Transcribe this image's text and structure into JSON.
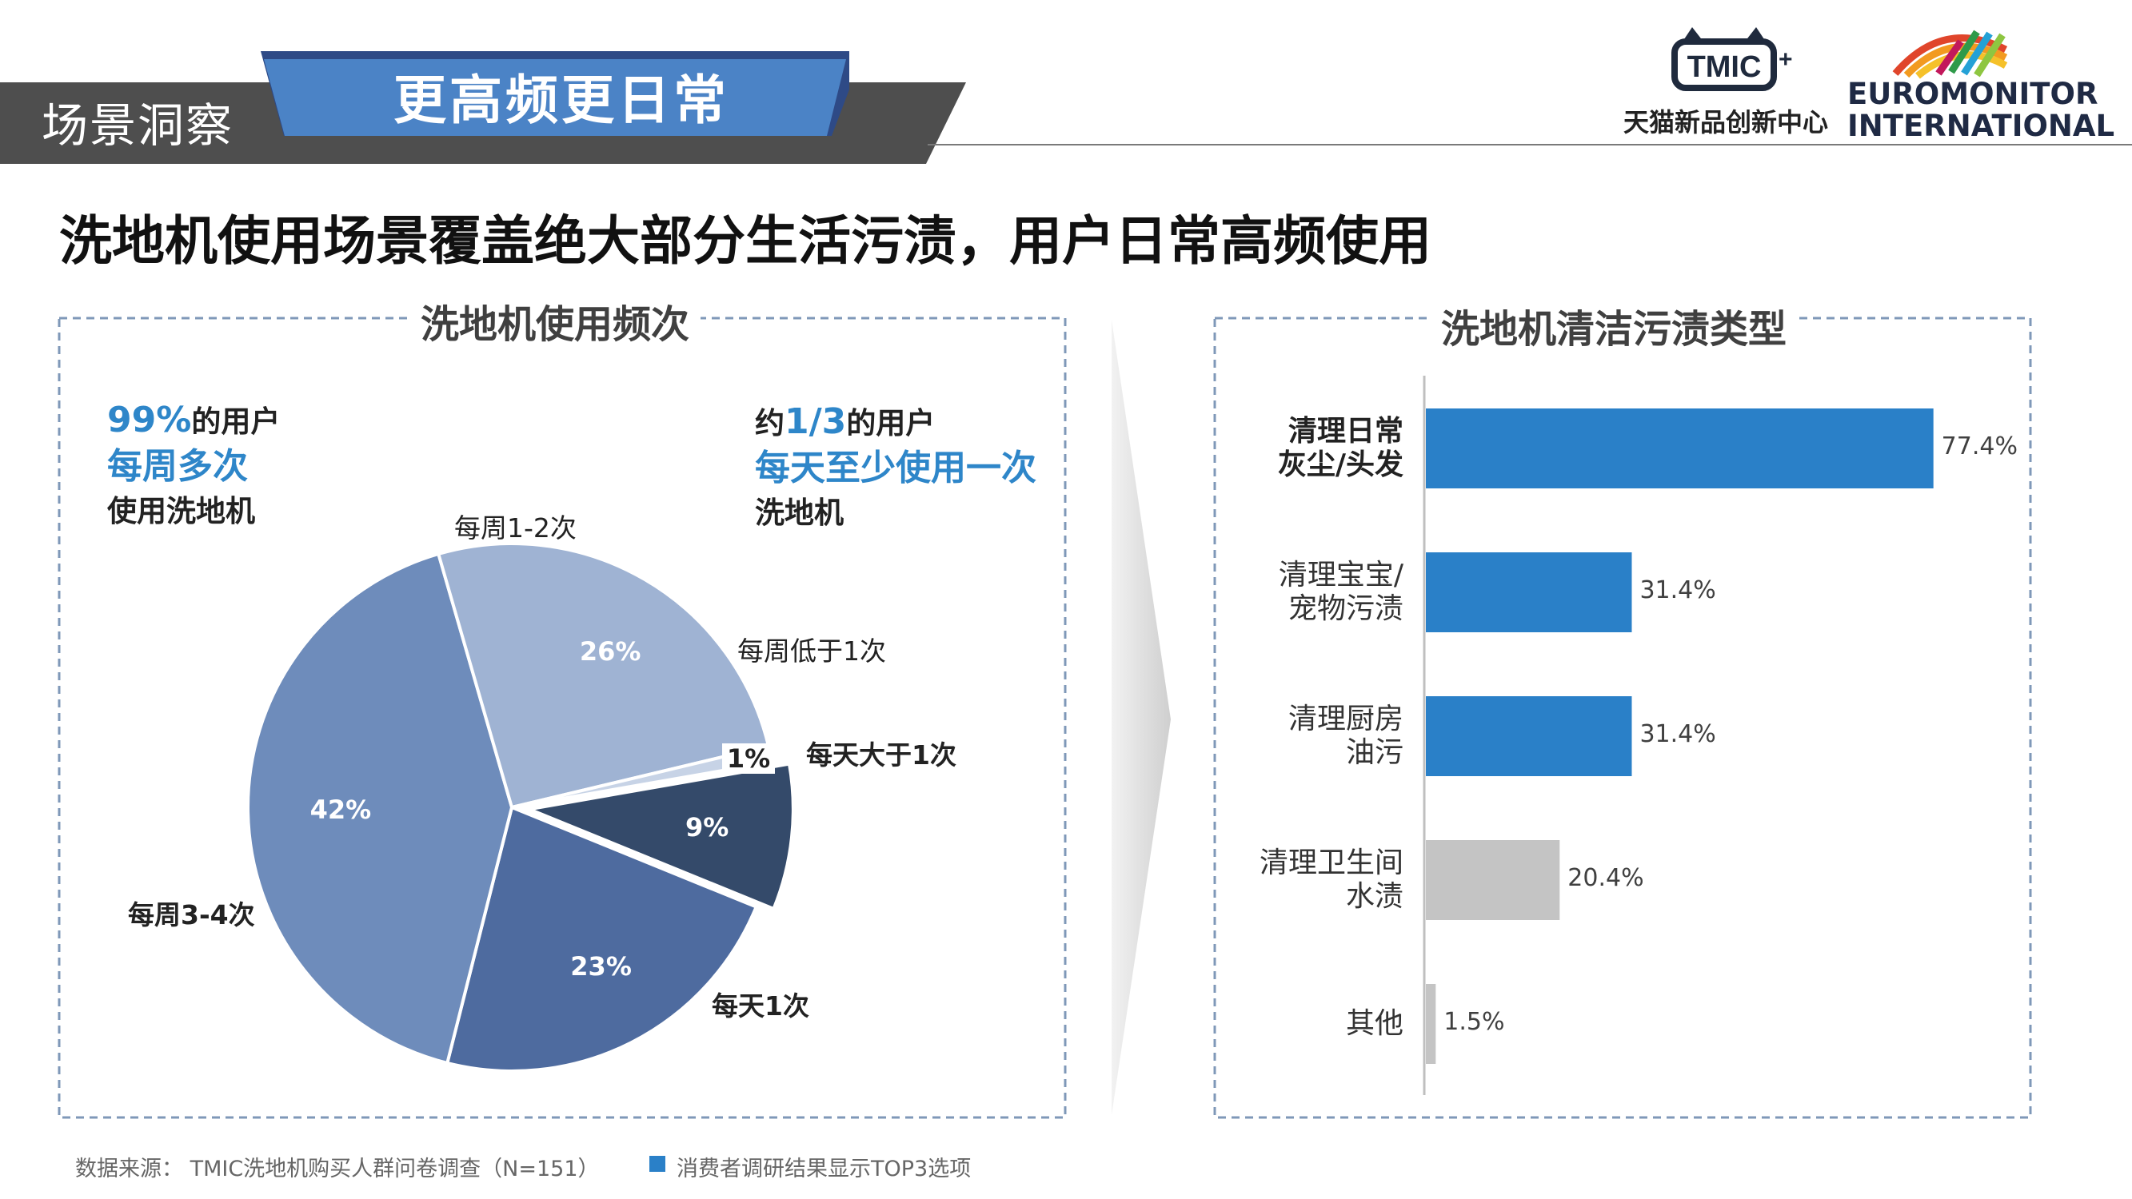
{
  "header": {
    "section_label": "场景洞察",
    "banner_title": "更高频更日常",
    "tmic_logo_text": "TMIC",
    "tmic_subtitle": "天猫新品创新中心",
    "euromonitor_line1": "EUROMONITOR",
    "euromonitor_line2": "INTERNATIONAL"
  },
  "headline": "洗地机使用场景覆盖绝大部分生活污渍，用户日常高频使用",
  "left_panel": {
    "title": "洗地机使用频次",
    "note_left": {
      "pct": "99%",
      "line1_suffix": "的用户",
      "line2": "每周多次",
      "line3": "使用洗地机"
    },
    "note_right": {
      "prefix": "约",
      "frac": "1/3",
      "line1_suffix": "的用户",
      "line2": "每天至少使用一次",
      "line3": "洗地机"
    }
  },
  "right_panel": {
    "title": "洗地机清洁污渍类型"
  },
  "chart_data": [
    {
      "type": "pie",
      "title": "洗地机使用频次",
      "slices": [
        {
          "label": "每天大于1次",
          "value": 9,
          "value_label": "9%",
          "color": "#344a6a"
        },
        {
          "label": "每天1次",
          "value": 23,
          "value_label": "23%",
          "color": "#4e6b9f"
        },
        {
          "label": "每周3-4次",
          "value": 42,
          "value_label": "42%",
          "color": "#6e8cbb"
        },
        {
          "label": "每周1-2次",
          "value": 26,
          "value_label": "26%",
          "color": "#9fb3d3"
        },
        {
          "label": "每周低于1次",
          "value": 1,
          "value_label": "1%",
          "color": "#c7d3e6"
        }
      ]
    },
    {
      "type": "bar",
      "orientation": "horizontal",
      "title": "洗地机清洁污渍类型",
      "categories": [
        [
          "清理日常",
          "灰尘/头发"
        ],
        [
          "清理宝宝/",
          "宠物污渍"
        ],
        [
          "清理厨房",
          "油污"
        ],
        [
          "清理卫生间",
          "水渍"
        ],
        [
          "其他"
        ]
      ],
      "values": [
        77.4,
        31.4,
        31.4,
        20.4,
        1.5
      ],
      "value_labels": [
        "77.4%",
        "31.4%",
        "31.4%",
        "20.4%",
        "1.5%"
      ],
      "colors": [
        "#2a80c8",
        "#2a80c8",
        "#2a80c8",
        "#c4c4c4",
        "#c4c4c4"
      ],
      "xlim": [
        0,
        100
      ]
    }
  ],
  "footer": {
    "source": "数据来源：  TMIC洗地机购买人群问卷调查（N=151）",
    "legend_label": "消费者调研结果显示TOP3选项",
    "legend_color": "#2a80c8"
  }
}
